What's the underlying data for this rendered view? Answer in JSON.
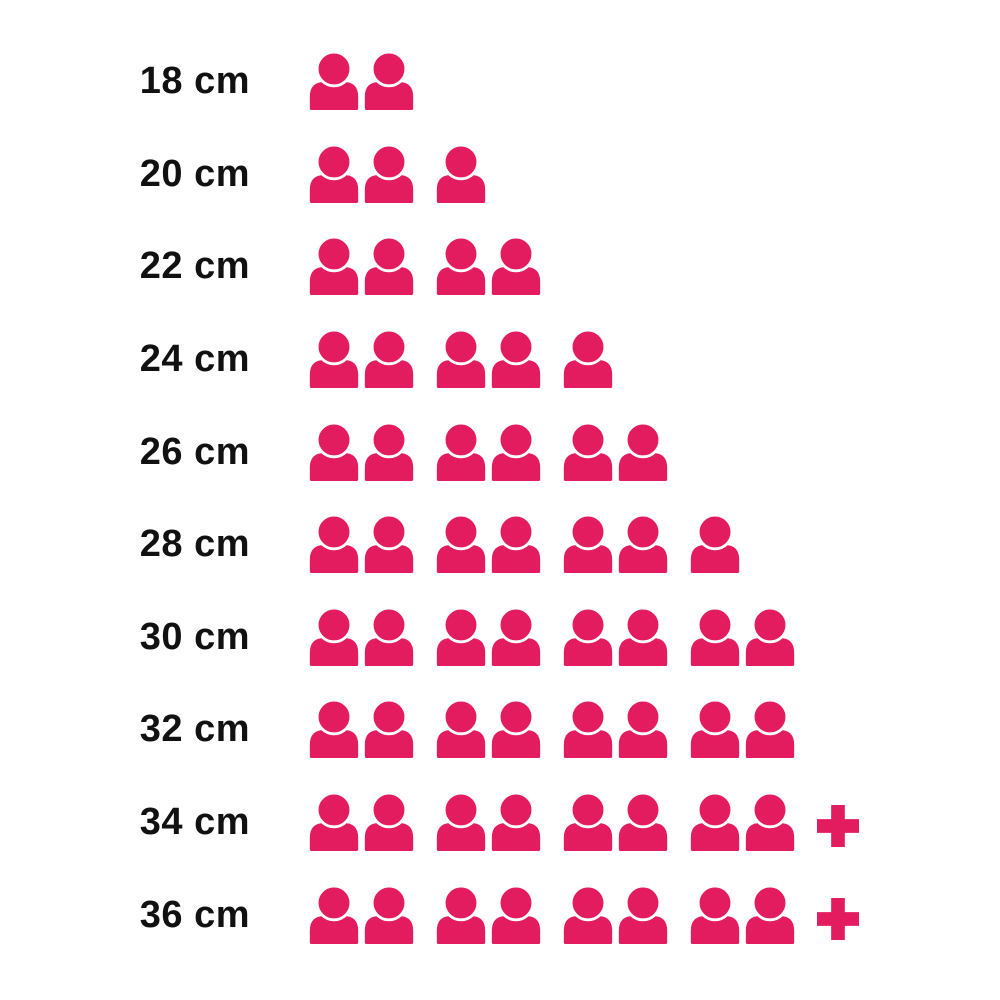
{
  "chart_data": {
    "type": "pictogram",
    "title": "",
    "xlabel": "",
    "ylabel": "",
    "legend": null,
    "grid": false,
    "unit_icon": "person-icon",
    "overflow_icon": "plus-icon",
    "icon_color": "#E31C5F",
    "label_color": "#111111",
    "background_color": "#FFFFFF",
    "icons_per_group": 2,
    "categories": [
      "18 cm",
      "20 cm",
      "22 cm",
      "24 cm",
      "26 cm",
      "28 cm",
      "30 cm",
      "32 cm",
      "34 cm",
      "36 cm"
    ],
    "values": [
      2,
      3,
      4,
      5,
      6,
      7,
      8,
      8,
      8,
      8
    ],
    "overflow": [
      false,
      false,
      false,
      false,
      false,
      false,
      false,
      false,
      true,
      true
    ],
    "display_values": [
      "2",
      "3",
      "4",
      "5",
      "6",
      "7",
      "8",
      "8",
      "8+",
      "8+"
    ]
  }
}
